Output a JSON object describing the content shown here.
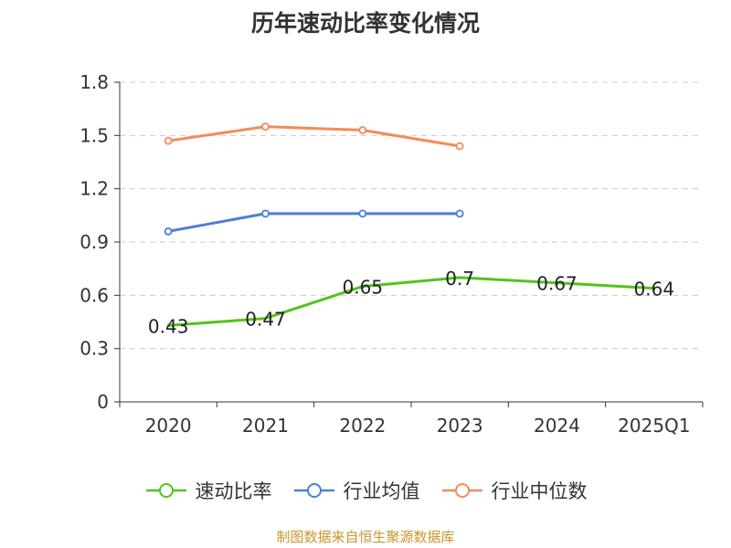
{
  "title": "历年速动比率变化情况",
  "source": "制图数据来自恒生聚源数据库",
  "colors": {
    "quick_ratio": "#52c41a",
    "industry_avg": "#4a7fd6",
    "industry_median": "#f48b58",
    "grid": "#cccccc",
    "axis": "#333333"
  },
  "chart_data": {
    "type": "line",
    "title": "历年速动比率变化情况",
    "categories": [
      "2020",
      "2021",
      "2022",
      "2023",
      "2024",
      "2025Q1"
    ],
    "ylim": [
      0,
      1.8
    ],
    "yticks": [
      "0",
      "0.3",
      "0.6",
      "0.9",
      "1.2",
      "1.5",
      "1.8"
    ],
    "grid": true,
    "legend_position": "bottom",
    "series": [
      {
        "name": "速动比率",
        "values": [
          0.43,
          0.47,
          0.65,
          0.7,
          0.67,
          0.64
        ],
        "labels": [
          "0.43",
          "0.47",
          "0.65",
          "0.7",
          "0.67",
          "0.64"
        ],
        "color": "#52c41a",
        "markers": false
      },
      {
        "name": "行业均值",
        "values": [
          0.96,
          1.06,
          1.06,
          1.06,
          null,
          null
        ],
        "color": "#4a7fd6",
        "markers": true
      },
      {
        "name": "行业中位数",
        "values": [
          1.47,
          1.55,
          1.53,
          1.44,
          null,
          null
        ],
        "color": "#f48b58",
        "markers": true
      }
    ]
  }
}
